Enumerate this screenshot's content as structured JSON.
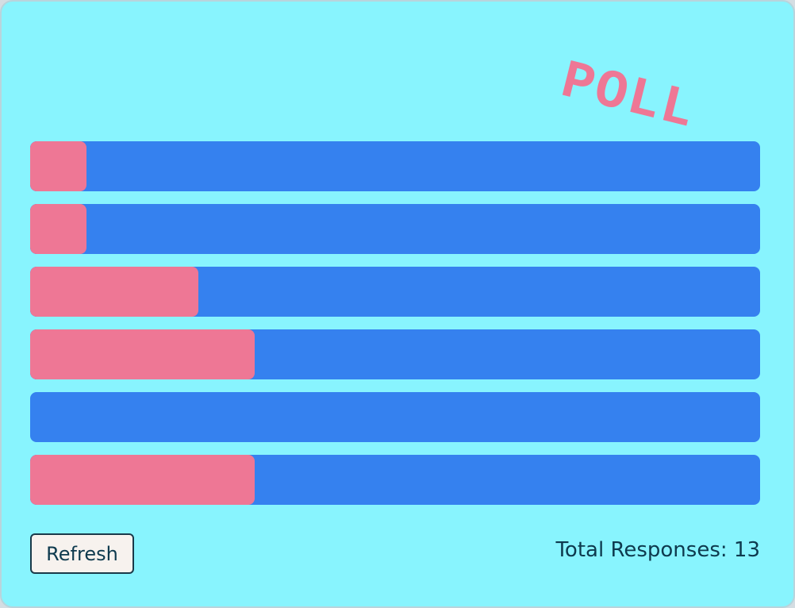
{
  "title": "POLL",
  "options": [
    {
      "votes": 1
    },
    {
      "votes": 1
    },
    {
      "votes": 3
    },
    {
      "votes": 4
    },
    {
      "votes": 0
    },
    {
      "votes": 4
    }
  ],
  "button": "Refresh",
  "total_label": "Total Responses:",
  "total": 13
}
